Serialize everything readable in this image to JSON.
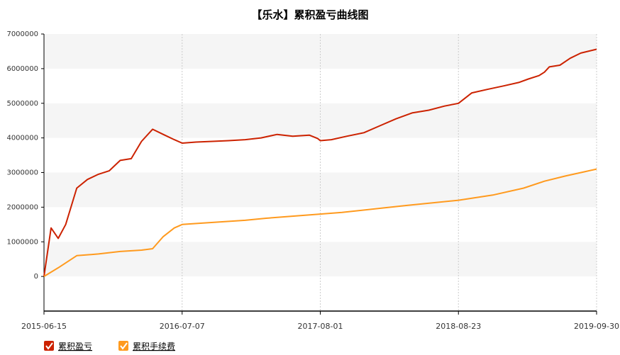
{
  "chart_data": {
    "type": "line",
    "title": "【乐水】累积盈亏曲线图",
    "xlabel": "",
    "ylabel": "",
    "x_ticks": [
      "2015-06-15",
      "2016-07-07",
      "2017-08-01",
      "2018-08-23",
      "2019-09-30"
    ],
    "y_ticks": [
      0,
      1000000,
      2000000,
      3000000,
      4000000,
      5000000,
      6000000,
      7000000
    ],
    "ylim": [
      -1000000,
      7000000
    ],
    "grid": "vertical dotted lines at x ticks, alternating horizontal bands",
    "legend_position": "bottom-left",
    "x_is_time_index": true,
    "series": [
      {
        "name": "累积盈亏",
        "color": "#cc2200",
        "x": [
          "2015-06-15",
          "2015-07-05",
          "2015-07-25",
          "2015-08-15",
          "2015-09-15",
          "2015-10-15",
          "2015-11-15",
          "2015-12-15",
          "2016-01-15",
          "2016-02-15",
          "2016-03-15",
          "2016-04-15",
          "2016-05-15",
          "2016-06-15",
          "2016-07-07",
          "2016-08-15",
          "2016-10-01",
          "2016-11-15",
          "2017-01-01",
          "2017-02-15",
          "2017-04-01",
          "2017-05-15",
          "2017-07-01",
          "2017-07-25",
          "2017-08-01",
          "2017-09-01",
          "2017-10-15",
          "2017-12-01",
          "2018-01-15",
          "2018-03-01",
          "2018-04-15",
          "2018-06-01",
          "2018-07-15",
          "2018-08-23",
          "2018-10-01",
          "2018-11-15",
          "2019-01-01",
          "2019-02-15",
          "2019-03-15",
          "2019-04-15",
          "2019-05-01",
          "2019-05-15",
          "2019-06-15",
          "2019-07-15",
          "2019-08-15",
          "2019-09-30"
        ],
        "values": [
          0,
          1400000,
          1100000,
          1500000,
          2550000,
          2800000,
          2950000,
          3050000,
          3350000,
          3400000,
          3900000,
          4250000,
          4100000,
          3950000,
          3850000,
          3880000,
          3900000,
          3920000,
          3950000,
          4000000,
          4100000,
          4050000,
          4080000,
          3980000,
          3920000,
          3950000,
          4050000,
          4150000,
          4350000,
          4550000,
          4720000,
          4800000,
          4920000,
          5000000,
          5300000,
          5400000,
          5500000,
          5600000,
          5700000,
          5800000,
          5900000,
          6050000,
          6100000,
          6300000,
          6450000,
          6560000
        ]
      },
      {
        "name": "累积手续费",
        "color": "#ff9a1e",
        "x": [
          "2015-06-15",
          "2015-07-25",
          "2015-09-15",
          "2015-11-15",
          "2016-01-15",
          "2016-03-15",
          "2016-04-15",
          "2016-05-15",
          "2016-06-15",
          "2016-07-07",
          "2016-09-01",
          "2016-11-01",
          "2017-01-01",
          "2017-03-01",
          "2017-05-01",
          "2017-08-01",
          "2017-10-01",
          "2018-01-01",
          "2018-04-01",
          "2018-08-23",
          "2018-12-01",
          "2019-03-01",
          "2019-05-01",
          "2019-07-01",
          "2019-09-30"
        ],
        "values": [
          0,
          250000,
          600000,
          650000,
          720000,
          760000,
          800000,
          1150000,
          1400000,
          1500000,
          1540000,
          1580000,
          1620000,
          1680000,
          1730000,
          1800000,
          1850000,
          1950000,
          2050000,
          2200000,
          2350000,
          2550000,
          2750000,
          2900000,
          3100000
        ]
      }
    ]
  }
}
